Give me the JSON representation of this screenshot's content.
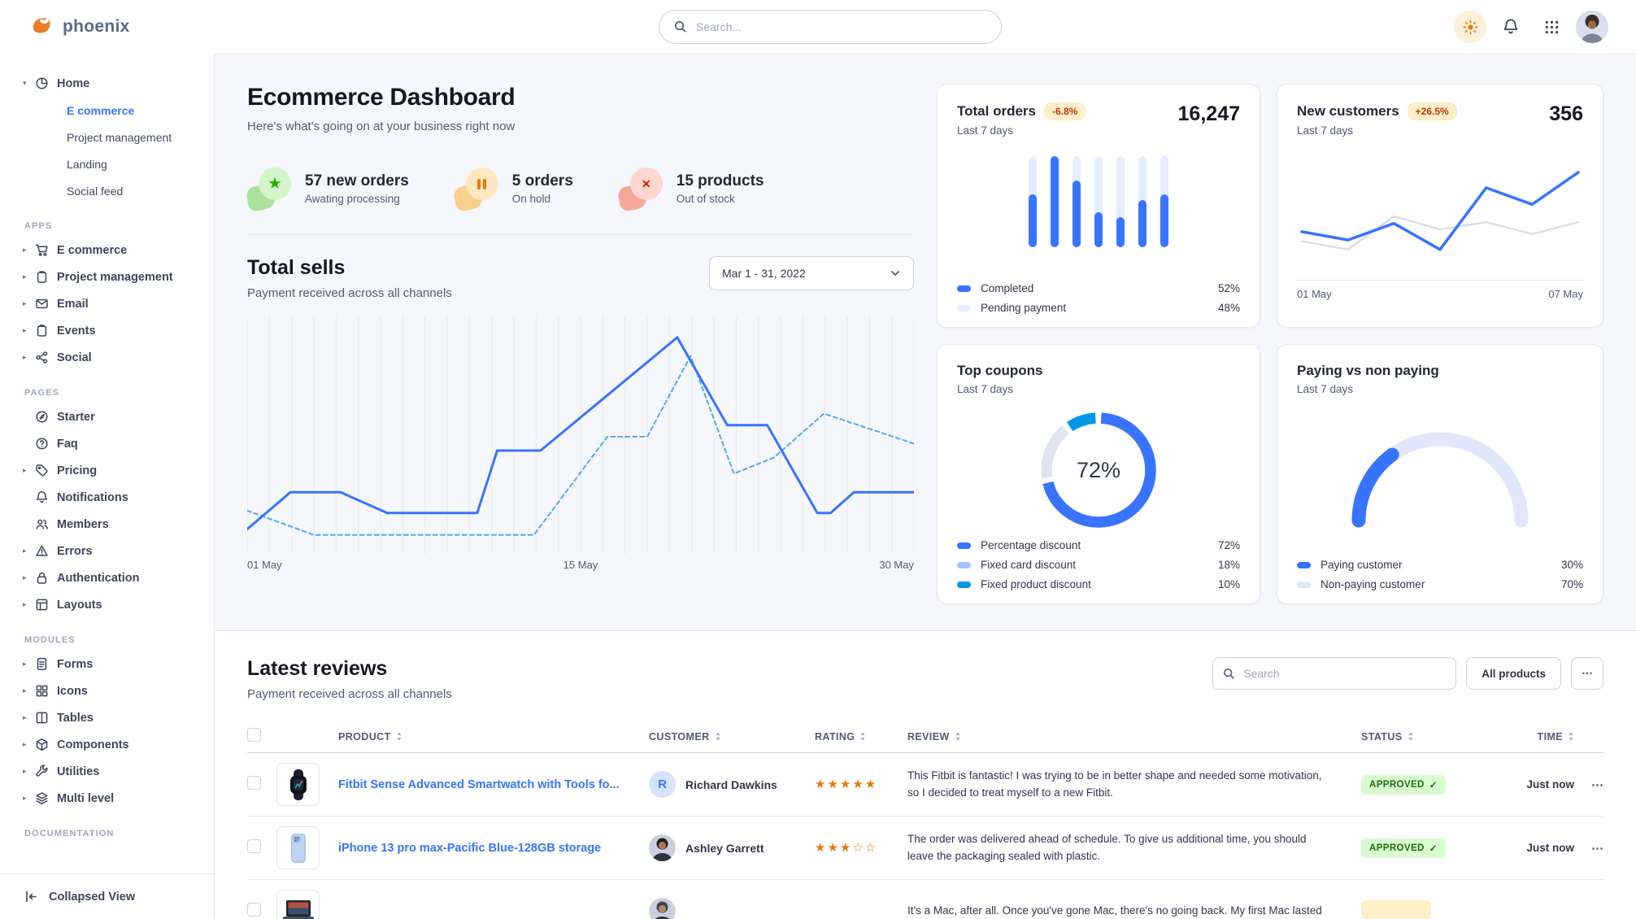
{
  "colors": {
    "primary": "#3874ff",
    "sky_dashed": "#55aaee",
    "info": "#0097eb",
    "gray_line": "#d8dde6",
    "grid_line": "#e5e8ef",
    "bar_track": "#e5edff",
    "gauge_track": "#e0e7fb",
    "star": "#e5780b",
    "success_badge_bg": "#d9fbd0",
    "success_badge_text": "#1c6c09",
    "warning_badge_bg": "#ffefca",
    "warning_badge_text": "#bc3803"
  },
  "navbar": {
    "brand": "phoenix",
    "search_placeholder": "Search..."
  },
  "sidebar": {
    "sections": [
      {
        "label": "",
        "items": [
          {
            "label": "Home",
            "icon": "pie-chart",
            "caret": "down",
            "children": [
              {
                "label": "E commerce",
                "active": true
              },
              {
                "label": "Project management",
                "active": false
              },
              {
                "label": "Landing",
                "active": false
              },
              {
                "label": "Social feed",
                "active": false
              }
            ]
          }
        ]
      },
      {
        "label": "APPS",
        "items": [
          {
            "label": "E commerce",
            "icon": "cart",
            "caret": "right"
          },
          {
            "label": "Project management",
            "icon": "clipboard",
            "caret": "right"
          },
          {
            "label": "Email",
            "icon": "mail",
            "caret": "right"
          },
          {
            "label": "Events",
            "icon": "clipboard",
            "caret": "right"
          },
          {
            "label": "Social",
            "icon": "share",
            "caret": "right"
          }
        ]
      },
      {
        "label": "PAGES",
        "items": [
          {
            "label": "Starter",
            "icon": "compass",
            "caret": "none"
          },
          {
            "label": "Faq",
            "icon": "question",
            "caret": "none"
          },
          {
            "label": "Pricing",
            "icon": "tag",
            "caret": "right"
          },
          {
            "label": "Notifications",
            "icon": "bell",
            "caret": "none"
          },
          {
            "label": "Members",
            "icon": "users",
            "caret": "none"
          },
          {
            "label": "Errors",
            "icon": "warning",
            "caret": "right"
          },
          {
            "label": "Authentication",
            "icon": "lock",
            "caret": "right"
          },
          {
            "label": "Layouts",
            "icon": "layout",
            "caret": "right"
          }
        ]
      },
      {
        "label": "MODULES",
        "items": [
          {
            "label": "Forms",
            "icon": "file",
            "caret": "right"
          },
          {
            "label": "Icons",
            "icon": "grid",
            "caret": "right"
          },
          {
            "label": "Tables",
            "icon": "table",
            "caret": "right"
          },
          {
            "label": "Components",
            "icon": "box",
            "caret": "right"
          },
          {
            "label": "Utilities",
            "icon": "wrench",
            "caret": "right"
          },
          {
            "label": "Multi level",
            "icon": "layers",
            "caret": "right"
          }
        ]
      },
      {
        "label": "DOCUMENTATION",
        "items": []
      }
    ],
    "footer": {
      "label": "Collapsed View",
      "icon": "collapse-left"
    }
  },
  "header": {
    "title": "Ecommerce Dashboard",
    "subtitle": "Here's what's going on at your business right now"
  },
  "stats": [
    {
      "value": "57 new orders",
      "caption": "Awating processing",
      "icon": "star",
      "glyph": "★",
      "circle_bg": "#d4f4c9",
      "blob_bg": "#abe19d",
      "glyph_color": "#25b003"
    },
    {
      "value": "5 orders",
      "caption": "On hold",
      "icon": "pause",
      "glyph": "",
      "circle_bg": "#ffe7c2",
      "blob_bg": "#f8cf8c",
      "glyph_color": "#e5780b"
    },
    {
      "value": "15 products",
      "caption": "Out of stock",
      "icon": "x",
      "glyph": "✕",
      "circle_bg": "#ffd6d0",
      "blob_bg": "#f5a79b",
      "glyph_color": "#cc1b00"
    }
  ],
  "total_sells": {
    "title": "Total sells",
    "subtitle": "Payment received across all channels",
    "date_range": "Mar 1 - 31, 2022",
    "chart_data": {
      "type": "line",
      "x_labels": [
        "01 May",
        "15 May",
        "30 May"
      ],
      "grid": true,
      "series": [
        {
          "name": "previous",
          "style": "dashed",
          "color": "#55aaee",
          "points": [
            [
              0,
              18
            ],
            [
              10,
              7.5
            ],
            [
              43,
              7.5
            ],
            [
              54,
              50
            ],
            [
              60,
              50
            ],
            [
              66.5,
              85
            ],
            [
              73,
              34
            ],
            [
              79,
              41
            ],
            [
              86.5,
              60
            ],
            [
              100,
              47
            ]
          ]
        },
        {
          "name": "current",
          "style": "solid",
          "color": "#3874ff",
          "points": [
            [
              0,
              10
            ],
            [
              6.5,
              26
            ],
            [
              14,
              26
            ],
            [
              21,
              17
            ],
            [
              34.5,
              17
            ],
            [
              37.5,
              44
            ],
            [
              44,
              44
            ],
            [
              64.5,
              93
            ],
            [
              72,
              55
            ],
            [
              78,
              55
            ],
            [
              85.5,
              17
            ],
            [
              87.5,
              17
            ],
            [
              91,
              26
            ],
            [
              100,
              26
            ]
          ]
        }
      ]
    }
  },
  "cards": {
    "total_orders": {
      "title": "Total orders",
      "badge": "-6.8%",
      "period": "Last 7 days",
      "value": "16,247",
      "chart_data": {
        "type": "bar",
        "values": [
          58,
          100,
          73,
          38,
          33,
          52,
          58
        ],
        "ylim": [
          0,
          100
        ]
      },
      "legend": [
        {
          "label": "Completed",
          "value": "52%",
          "color": "#3874ff"
        },
        {
          "label": "Pending payment",
          "value": "48%",
          "color": "#e5edff"
        }
      ]
    },
    "new_customers": {
      "title": "New customers",
      "badge": "+26.5%",
      "period": "Last 7 days",
      "value": "356",
      "chart_data": {
        "type": "line",
        "x_labels": [
          "01 May",
          "07 May"
        ],
        "series": [
          {
            "name": "previous",
            "color": "#d8dde6",
            "values": [
              27,
              20,
              48,
              37,
              43,
              33,
              43
            ]
          },
          {
            "name": "current",
            "color": "#3874ff",
            "values": [
              35,
              28,
              42,
              20,
              72,
              58,
              85
            ]
          }
        ]
      }
    },
    "top_coupons": {
      "title": "Top coupons",
      "period": "Last 7 days",
      "center_label": "72%",
      "chart_data": {
        "type": "donut",
        "segments": [
          {
            "label": "Percentage discount",
            "value": 72,
            "display": "72%",
            "color": "#3874ff",
            "arc_color": "#3874ff"
          },
          {
            "label": "Fixed card discount",
            "value": 18,
            "display": "18%",
            "color": "#a9c1ff",
            "arc_color": "#dfe4ee"
          },
          {
            "label": "Fixed product discount",
            "value": 10,
            "display": "10%",
            "color": "#0097eb",
            "arc_color": "#0097eb"
          }
        ]
      }
    },
    "paying": {
      "title": "Paying vs non paying",
      "period": "Last 7 days",
      "chart_data": {
        "type": "gauge",
        "segments": [
          {
            "label": "Paying customer",
            "value": 30,
            "display": "30%",
            "color": "#3874ff"
          },
          {
            "label": "Non-paying customer",
            "value": 70,
            "display": "70%",
            "color": "#e0e7fb"
          }
        ]
      }
    }
  },
  "reviews": {
    "title": "Latest reviews",
    "subtitle": "Payment received across all channels",
    "search_placeholder": "Search",
    "filter_button": "All products",
    "more_button": "⋯",
    "columns": [
      "PRODUCT",
      "CUSTOMER",
      "RATING",
      "REVIEW",
      "STATUS",
      "TIME"
    ],
    "rows": [
      {
        "product": "Fitbit Sense Advanced Smartwatch with Tools fo...",
        "thumb": "smartwatch",
        "customer": {
          "name": "Richard Dawkins",
          "avatar": "initial",
          "initial": "R"
        },
        "rating": 5,
        "review": "This Fitbit is fantastic! I was trying to be in better shape and needed some motivation, so I decided to treat myself to a new Fitbit.",
        "status": {
          "label": "APPROVED",
          "check": "✓",
          "type": "success"
        },
        "time": "Just now",
        "row_more": "⋯"
      },
      {
        "product": "iPhone 13 pro max-Pacific Blue-128GB storage",
        "thumb": "iphone",
        "customer": {
          "name": "Ashley Garrett",
          "avatar": "photo",
          "initial": ""
        },
        "rating": 3,
        "review": "The order was delivered ahead of schedule. To give us additional time, you should leave the packaging sealed with plastic.",
        "status": {
          "label": "APPROVED",
          "check": "✓",
          "type": "success"
        },
        "time": "Just now",
        "row_more": "⋯"
      },
      {
        "product": "",
        "thumb": "macbook",
        "customer": {
          "name": "",
          "avatar": "photo",
          "initial": ""
        },
        "rating": null,
        "review": "It's a Mac, after all. Once you've gone Mac, there's no going back. My first Mac lasted",
        "status": {
          "label": "",
          "check": "",
          "type": "warning"
        },
        "time": "",
        "row_more": ""
      }
    ]
  }
}
